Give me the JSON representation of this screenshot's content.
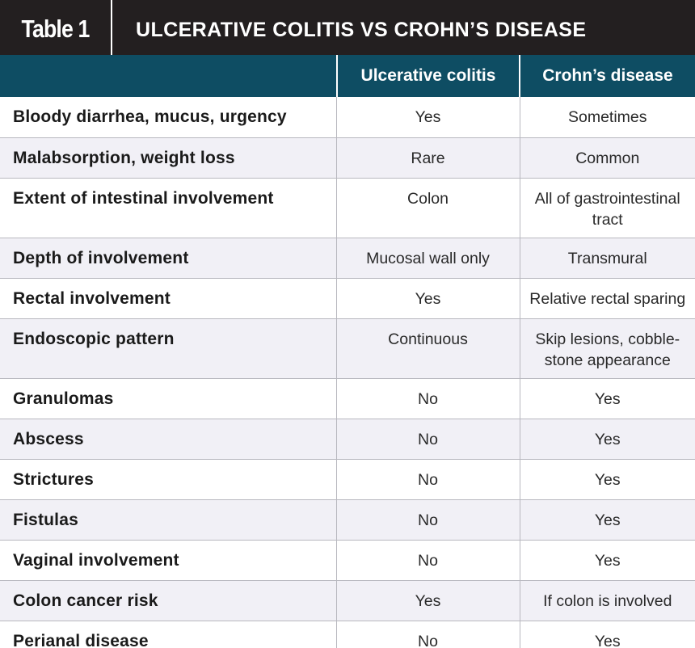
{
  "table": {
    "number_label": "Table 1",
    "title": "ULCERATIVE COLITIS VS CROHN’S DISEASE",
    "columns": [
      "",
      "Ulcerative colitis",
      "Crohn’s disease"
    ],
    "rows": [
      {
        "feature": "Bloody diarrhea, mucus, urgency",
        "ulcerative_colitis": "Yes",
        "crohns_disease": "Sometimes"
      },
      {
        "feature": "Malabsorption, weight loss",
        "ulcerative_colitis": "Rare",
        "crohns_disease": "Common"
      },
      {
        "feature": "Extent of intestinal involvement",
        "ulcerative_colitis": "Colon",
        "crohns_disease": "All of gastrointestinal tract"
      },
      {
        "feature": "Depth of involvement",
        "ulcerative_colitis": "Mucosal wall only",
        "crohns_disease": "Transmural"
      },
      {
        "feature": "Rectal involvement",
        "ulcerative_colitis": "Yes",
        "crohns_disease": "Relative rectal sparing"
      },
      {
        "feature": "Endoscopic pattern",
        "ulcerative_colitis": "Continuous",
        "crohns_disease": "Skip lesions, cobble-stone appearance"
      },
      {
        "feature": "Granulomas",
        "ulcerative_colitis": "No",
        "crohns_disease": "Yes"
      },
      {
        "feature": "Abscess",
        "ulcerative_colitis": "No",
        "crohns_disease": "Yes"
      },
      {
        "feature": "Strictures",
        "ulcerative_colitis": "No",
        "crohns_disease": "Yes"
      },
      {
        "feature": "Fistulas",
        "ulcerative_colitis": "No",
        "crohns_disease": "Yes"
      },
      {
        "feature": "Vaginal involvement",
        "ulcerative_colitis": "No",
        "crohns_disease": "Yes"
      },
      {
        "feature": "Colon cancer risk",
        "ulcerative_colitis": "Yes",
        "crohns_disease": "If colon is involved"
      },
      {
        "feature": "Perianal disease",
        "ulcerative_colitis": "No",
        "crohns_disease": "Yes"
      }
    ]
  },
  "colors": {
    "title_bar": "#231f20",
    "header_row": "#0e4d63",
    "row_alt": "#f1f0f6",
    "grid_line": "#b8b8bf"
  }
}
